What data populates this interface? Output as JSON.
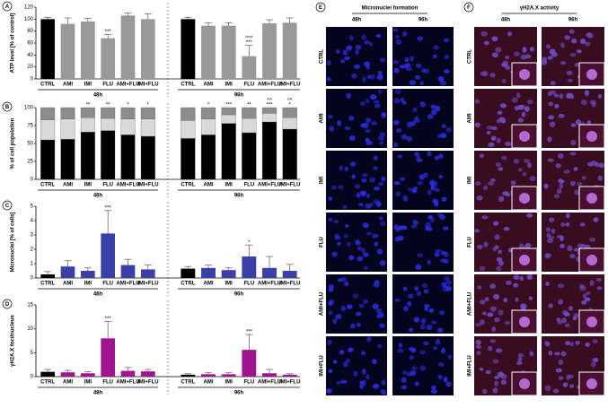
{
  "chart_data": [
    {
      "type": "bar",
      "panel": "A",
      "ylabel": "ATP level [% of control]",
      "categories": [
        "CTRL",
        "AMI",
        "IMI",
        "FLU",
        "AMI+FLU",
        "IMI+FLU",
        "CTRL",
        "AMI",
        "IMI",
        "FLU",
        "AMI+FLU",
        "IMI+FLU"
      ],
      "group_labels": [
        "48h",
        "96h"
      ],
      "values": [
        100,
        92,
        96,
        68,
        106,
        100,
        100,
        89,
        89,
        38,
        93,
        94
      ],
      "errors": [
        3,
        10,
        5,
        6,
        4,
        9,
        3,
        5,
        5,
        18,
        6,
        8
      ],
      "colors": [
        "#000000",
        "#999999",
        "#999999",
        "#999999",
        "#999999",
        "#999999",
        "#000000",
        "#999999",
        "#999999",
        "#999999",
        "#999999",
        "#999999"
      ],
      "annotations": [
        null,
        null,
        null,
        [
          "***"
        ],
        null,
        null,
        null,
        null,
        null,
        [
          "^^^",
          "***"
        ],
        null,
        null
      ],
      "ylim": [
        0,
        120
      ],
      "yticks": [
        0,
        20,
        40,
        60,
        80,
        100,
        120
      ]
    },
    {
      "type": "stacked_bar",
      "panel": "B",
      "ylabel": "% of cell population",
      "categories": [
        "CTRL",
        "AMI",
        "IMI",
        "FLU",
        "AMI+FLU",
        "IMI+FLU",
        "CTRL",
        "AMI",
        "IMI",
        "FLU",
        "AMI+FLU",
        "IMI+FLU"
      ],
      "group_labels": [
        "48h",
        "96h"
      ],
      "series": [
        {
          "color": "#000000",
          "values": [
            55,
            56,
            66,
            68,
            62,
            60,
            57,
            62,
            78,
            65,
            80,
            70
          ]
        },
        {
          "color": "#d9d9d9",
          "values": [
            28,
            28,
            20,
            17,
            22,
            24,
            25,
            22,
            12,
            20,
            12,
            16
          ]
        },
        {
          "color": "#8c8c8c",
          "values": [
            17,
            16,
            14,
            15,
            16,
            16,
            18,
            16,
            10,
            15,
            8,
            14
          ]
        }
      ],
      "annotations": [
        null,
        null,
        [
          "**"
        ],
        [
          "**"
        ],
        [
          "*"
        ],
        [
          "*"
        ],
        null,
        [
          "*"
        ],
        [
          "***"
        ],
        [
          "**"
        ],
        [
          "^^",
          "***"
        ],
        [
          "^^",
          "*"
        ]
      ],
      "ylim": [
        0,
        100
      ],
      "yticks": [
        0,
        25,
        50,
        75,
        100
      ]
    },
    {
      "type": "bar",
      "panel": "C",
      "ylabel": "Micronuclei [% of cells]",
      "categories": [
        "CTRL",
        "AMI",
        "IMI",
        "FLU",
        "AMI+FLU",
        "IMI+FLU",
        "CTRL",
        "AMI",
        "IMI",
        "FLU",
        "AMI+FLU",
        "IMI+FLU"
      ],
      "group_labels": [
        "48h",
        "96h"
      ],
      "values": [
        0.25,
        0.8,
        0.5,
        3.1,
        0.9,
        0.6,
        0.65,
        0.7,
        0.55,
        1.5,
        0.7,
        0.5
      ],
      "errors": [
        0.2,
        0.4,
        0.2,
        1.6,
        0.4,
        0.3,
        0.15,
        0.2,
        0.15,
        0.8,
        0.8,
        0.45
      ],
      "colors": [
        "#000000",
        "#3b3fa8",
        "#3b3fa8",
        "#3b3fa8",
        "#3b3fa8",
        "#3b3fa8",
        "#000000",
        "#3b3fa8",
        "#3b3fa8",
        "#3b3fa8",
        "#3b3fa8",
        "#3b3fa8"
      ],
      "annotations": [
        null,
        null,
        null,
        [
          "***"
        ],
        null,
        null,
        null,
        null,
        null,
        [
          "*"
        ],
        null,
        null
      ],
      "ylim": [
        0,
        5
      ],
      "yticks": [
        0,
        1,
        2,
        3,
        4,
        5
      ]
    },
    {
      "type": "bar",
      "panel": "D",
      "ylabel": "γH2A.X foci/nucleus",
      "categories": [
        "CTRL",
        "AMI",
        "IMI",
        "FLU",
        "AMI+FLU",
        "IMI+FLU",
        "CTRL",
        "AMI",
        "IMI",
        "FLU",
        "AMI+FLU",
        "IMI+FLU"
      ],
      "group_labels": [
        "48h",
        "96h"
      ],
      "values": [
        1,
        0.9,
        0.7,
        8,
        1.2,
        1.1,
        0.4,
        0.5,
        0.5,
        5.6,
        0.7,
        0.4
      ],
      "errors": [
        0.5,
        0.4,
        0.3,
        3.5,
        0.7,
        0.4,
        0.2,
        0.3,
        0.3,
        3.2,
        0.8,
        0.2
      ],
      "colors": [
        "#000000",
        "#a0158f",
        "#a0158f",
        "#a0158f",
        "#a0158f",
        "#a0158f",
        "#000000",
        "#a0158f",
        "#a0158f",
        "#a0158f",
        "#a0158f",
        "#a0158f"
      ],
      "annotations": [
        null,
        null,
        null,
        [
          "***"
        ],
        null,
        null,
        null,
        null,
        null,
        [
          "***"
        ],
        null,
        null
      ],
      "ylim": [
        0,
        15
      ],
      "yticks": [
        0,
        5,
        10,
        15
      ]
    }
  ],
  "images": [
    {
      "panel": "E",
      "title": "Micronuclei formation",
      "columns": [
        "48h",
        "96h"
      ],
      "rows": [
        "CTRL",
        "AMI",
        "IMI",
        "FLU",
        "AMI+FLU",
        "IMI+FLU"
      ],
      "background": "#04041f",
      "dot_color": "#2b2bd8"
    },
    {
      "panel": "F",
      "title": "γH2A.X activity",
      "columns": [
        "48h",
        "96h"
      ],
      "rows": [
        "CTRL",
        "AMI",
        "IMI",
        "FLU",
        "AMI+FLU",
        "IMI+FLU"
      ],
      "background": "#3a0c1f",
      "dot_color": "#6f4bc4"
    }
  ]
}
